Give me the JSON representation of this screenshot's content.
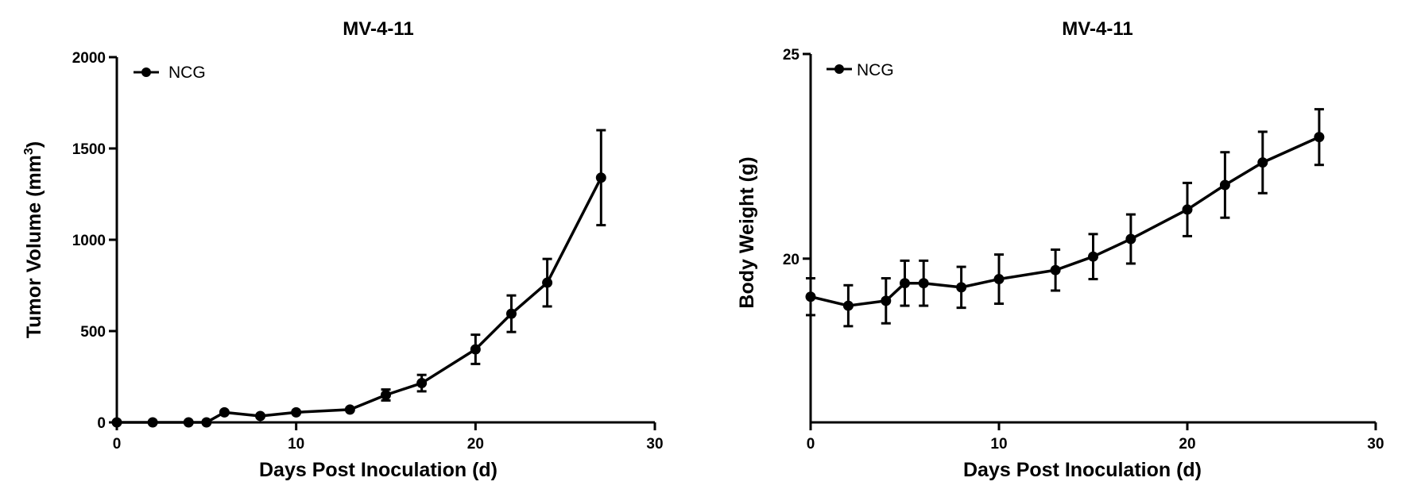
{
  "chart_data": [
    {
      "type": "line",
      "title": "MV-4-11",
      "xlabel": "Days Post Inoculation (d)",
      "ylabel": "Tumor Volume (mm",
      "ylabel_sup": "3",
      "ylabel_end": ")",
      "xlim": [
        0,
        30
      ],
      "ylim": [
        0,
        2000
      ],
      "xticks": [
        0,
        10,
        20,
        30
      ],
      "yticks": [
        0,
        500,
        1000,
        1500,
        2000
      ],
      "legend": "top-left",
      "series": [
        {
          "name": "NCG",
          "x": [
            0,
            2,
            4,
            5,
            6,
            8,
            10,
            13,
            15,
            17,
            20,
            22,
            24,
            27
          ],
          "y": [
            0,
            0,
            0,
            0,
            55,
            35,
            55,
            70,
            150,
            215,
            400,
            595,
            765,
            1340
          ],
          "err": [
            0,
            0,
            0,
            0,
            0,
            0,
            0,
            0,
            30,
            45,
            80,
            100,
            130,
            260
          ]
        }
      ]
    },
    {
      "type": "line",
      "title": "MV-4-11",
      "xlabel": "Days Post Inoculation (d)",
      "ylabel": "Body Weight (g)",
      "xlim": [
        0,
        30
      ],
      "ylim": [
        16,
        25
      ],
      "xticks": [
        0,
        10,
        20,
        30
      ],
      "yticks": [
        20,
        25
      ],
      "legend": "top-left",
      "series": [
        {
          "name": "NCG",
          "x": [
            0,
            2,
            4,
            5,
            6,
            8,
            10,
            13,
            15,
            17,
            20,
            22,
            24,
            27
          ],
          "y": [
            19.07,
            18.85,
            18.97,
            19.4,
            19.4,
            19.3,
            19.5,
            19.72,
            20.05,
            20.48,
            21.2,
            21.8,
            22.35,
            22.97
          ],
          "err": [
            0.45,
            0.5,
            0.55,
            0.55,
            0.55,
            0.5,
            0.6,
            0.5,
            0.55,
            0.6,
            0.65,
            0.8,
            0.75,
            0.68
          ]
        }
      ]
    }
  ]
}
